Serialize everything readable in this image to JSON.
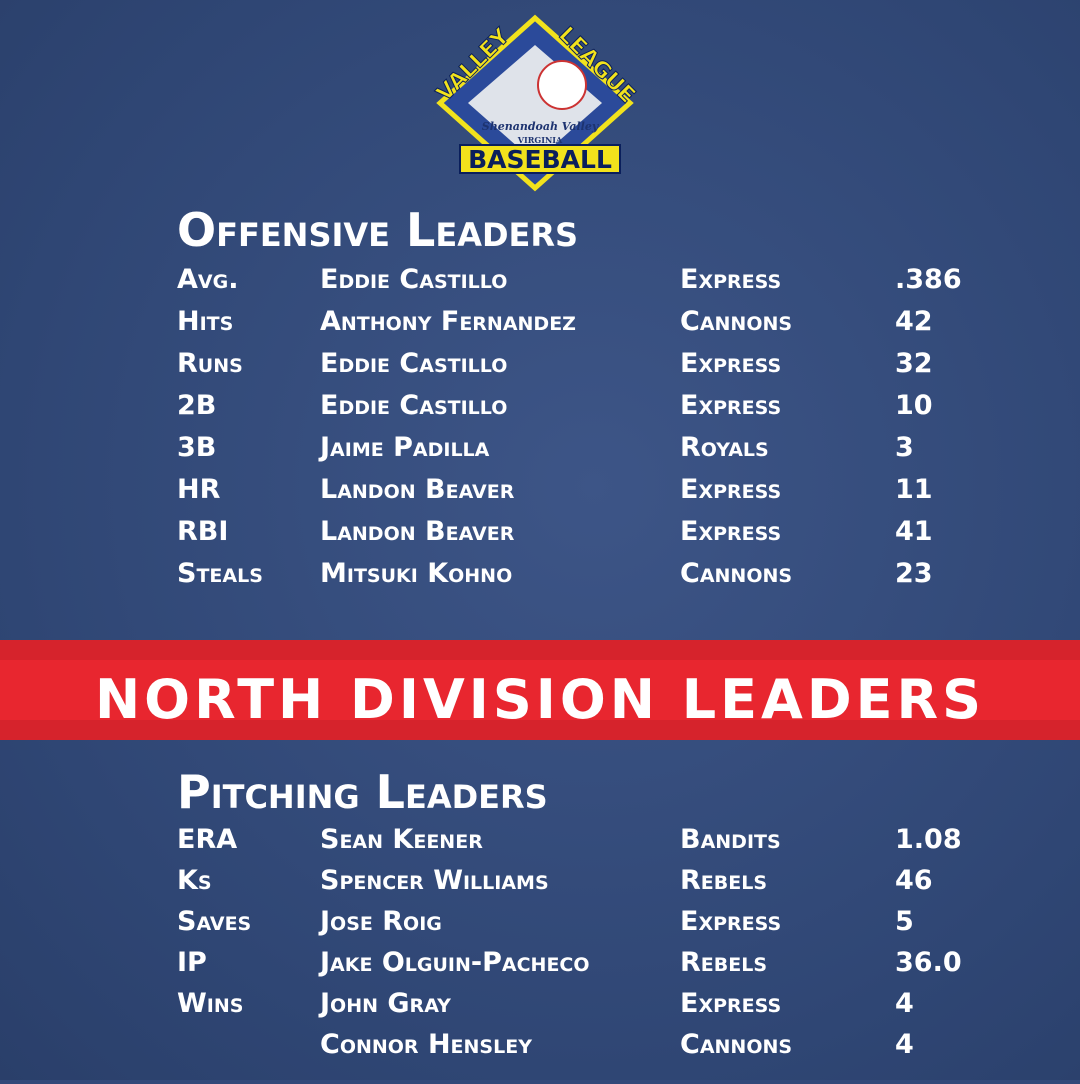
{
  "logo": {
    "top_left": "VALLEY",
    "top_right": "LEAGUE",
    "script": "Shenandoah Valley",
    "state": "VIRGINIA",
    "bottom": "BASEBALL"
  },
  "offense": {
    "title": "Offensive Leaders",
    "rows": [
      {
        "stat": "Avg.",
        "player": "Eddie Castillo",
        "team": "Express",
        "value": ".386"
      },
      {
        "stat": "Hits",
        "player": "Anthony Fernandez",
        "team": "Cannons",
        "value": "42"
      },
      {
        "stat": "Runs",
        "player": "Eddie Castillo",
        "team": "Express",
        "value": "32"
      },
      {
        "stat": "2B",
        "player": "Eddie Castillo",
        "team": "Express",
        "value": "10"
      },
      {
        "stat": "3B",
        "player": "Jaime Padilla",
        "team": "Royals",
        "value": "3"
      },
      {
        "stat": "HR",
        "player": "Landon Beaver",
        "team": "Express",
        "value": "11"
      },
      {
        "stat": "RBI",
        "player": "Landon Beaver",
        "team": "Express",
        "value": "41"
      },
      {
        "stat": "Steals",
        "player": "Mitsuki Kohno",
        "team": "Cannons",
        "value": "23"
      }
    ]
  },
  "banner": "NORTH DIVISION LEADERS",
  "pitching": {
    "title": "Pitching Leaders",
    "rows": [
      {
        "stat": "ERA",
        "player": "Sean Keener",
        "team": "Bandits",
        "value": "1.08"
      },
      {
        "stat": "Ks",
        "player": "Spencer Williams",
        "team": "Rebels",
        "value": "46"
      },
      {
        "stat": "Saves",
        "player": "Jose Roig",
        "team": "Express",
        "value": "5"
      },
      {
        "stat": "IP",
        "player": "Jake Olguin-Pacheco",
        "team": "Rebels",
        "value": "36.0"
      },
      {
        "stat": "Wins",
        "player": "John Gray",
        "team": "Express",
        "value": "4"
      },
      {
        "player": "Connor Hensley",
        "team": "Cannons",
        "value": "4"
      }
    ]
  }
}
